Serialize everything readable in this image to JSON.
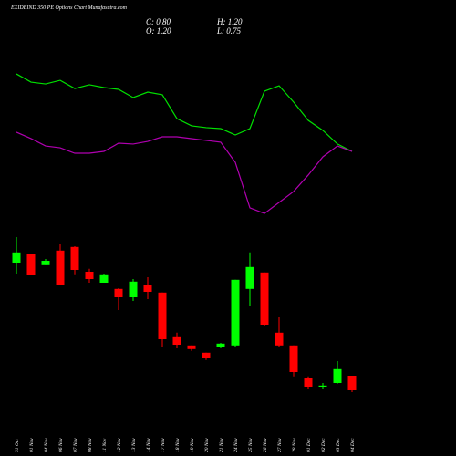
{
  "chart_data": {
    "type": "candlestick",
    "title": "EXIDEIND 350 PE Options Chart Munafasutra.com",
    "close_text": "C: 0.80",
    "high_text": "H: 1.20",
    "open_text": "O: 1.20",
    "low_text": "L: 0.75",
    "categories": [
      "31 Oct",
      "01 Nov",
      "04 Nov",
      "06 Nov",
      "07 Nov",
      "08 Nov",
      "11 Nov",
      "12 Nov",
      "13 Nov",
      "14 Nov",
      "17 Nov",
      "18 Nov",
      "19 Nov",
      "20 Nov",
      "21 Nov",
      "24 Nov",
      "25 Nov",
      "26 Nov",
      "27 Nov",
      "28 Nov",
      "01 Dec",
      "02 Dec",
      "03 Dec",
      "04 Dec"
    ],
    "open": [
      4.3,
      4.55,
      4.23,
      4.63,
      4.73,
      4.05,
      3.75,
      3.58,
      3.35,
      3.68,
      3.48,
      2.28,
      2.03,
      1.83,
      1.98,
      2.03,
      3.58,
      4.03,
      2.38,
      2.03,
      1.13,
      0.9,
      1.0,
      1.2
    ],
    "high": [
      5.0,
      4.55,
      4.4,
      4.8,
      4.75,
      4.13,
      4.0,
      3.6,
      3.85,
      3.9,
      3.48,
      2.38,
      2.03,
      1.83,
      2.1,
      3.83,
      4.58,
      4.03,
      2.8,
      2.03,
      1.18,
      1.0,
      1.6,
      1.2
    ],
    "low": [
      4.0,
      3.95,
      4.23,
      3.7,
      3.98,
      3.75,
      3.75,
      3.0,
      3.25,
      3.3,
      2.0,
      1.95,
      1.88,
      1.63,
      1.95,
      2.0,
      3.1,
      2.55,
      2.0,
      1.18,
      0.85,
      0.83,
      0.98,
      0.75
    ],
    "close": [
      4.58,
      3.95,
      4.35,
      3.7,
      4.1,
      3.85,
      3.98,
      3.35,
      3.78,
      3.5,
      2.2,
      2.05,
      1.93,
      1.7,
      2.08,
      3.83,
      4.18,
      2.6,
      2.03,
      1.3,
      0.9,
      0.93,
      1.38,
      0.8
    ],
    "up_color": "#00ff00",
    "down_color": "#ff0000",
    "ylim": [
      0.5,
      5.25
    ],
    "indicator_ylim": [
      0,
      100
    ],
    "indicator_lines": [
      {
        "color": "#00e000",
        "values": [
          88.3,
          83.3,
          82.2,
          84.4,
          79.4,
          81.7,
          80,
          78.9,
          73.9,
          77.2,
          75.6,
          61.1,
          56.7,
          55.6,
          55,
          51.1,
          55,
          77.8,
          81.1,
          71.1,
          60,
          53.9,
          45.6,
          41.1
        ]
      },
      {
        "color": "#b000b0",
        "values": [
          52.8,
          48.9,
          44.4,
          43.3,
          40,
          40,
          41.1,
          46.1,
          45.6,
          47.2,
          50,
          50,
          48.9,
          47.8,
          46.7,
          34.4,
          6.7,
          3.3,
          10,
          16.7,
          26.7,
          37.8,
          44.4,
          41.1
        ]
      }
    ]
  }
}
